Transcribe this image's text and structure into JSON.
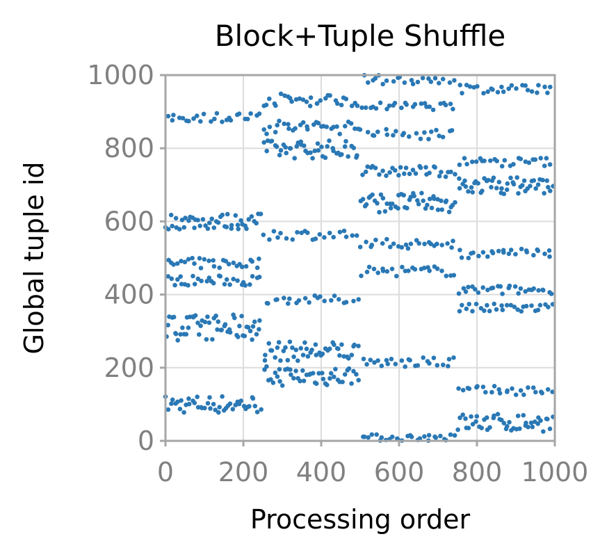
{
  "chart_data": {
    "type": "scatter",
    "title": "Block+Tuple Shuffle",
    "xlabel": "Processing order",
    "ylabel": "Global tuple id",
    "xlim": [
      0,
      1000
    ],
    "ylim": [
      0,
      1000
    ],
    "xticks": [
      0,
      200,
      400,
      600,
      800,
      1000
    ],
    "yticks": [
      0,
      200,
      400,
      600,
      800,
      1000
    ],
    "grid": true,
    "legend": "none",
    "marker_color": "#2a78b5",
    "seed": 7,
    "segments": [
      {
        "x0": 0,
        "x1": 250,
        "groups": [
          {
            "y0": 75,
            "y1": 125,
            "n": 45
          },
          {
            "y0": 275,
            "y1": 345,
            "n": 55
          },
          {
            "y0": 425,
            "y1": 452,
            "n": 30
          },
          {
            "y0": 470,
            "y1": 500,
            "n": 28
          },
          {
            "y0": 578,
            "y1": 622,
            "n": 45
          },
          {
            "y0": 872,
            "y1": 898,
            "n": 25
          }
        ]
      },
      {
        "x0": 250,
        "x1": 500,
        "groups": [
          {
            "y0": 150,
            "y1": 205,
            "n": 45
          },
          {
            "y0": 218,
            "y1": 272,
            "n": 45
          },
          {
            "y0": 375,
            "y1": 397,
            "n": 22
          },
          {
            "y0": 550,
            "y1": 578,
            "n": 22
          },
          {
            "y0": 772,
            "y1": 822,
            "n": 45
          },
          {
            "y0": 838,
            "y1": 878,
            "n": 30
          },
          {
            "y0": 915,
            "y1": 950,
            "n": 30
          }
        ]
      },
      {
        "x0": 500,
        "x1": 750,
        "groups": [
          {
            "y0": 0,
            "y1": 18,
            "n": 28
          },
          {
            "y0": 200,
            "y1": 228,
            "n": 25
          },
          {
            "y0": 450,
            "y1": 478,
            "n": 25
          },
          {
            "y0": 525,
            "y1": 552,
            "n": 25
          },
          {
            "y0": 625,
            "y1": 678,
            "n": 48
          },
          {
            "y0": 722,
            "y1": 752,
            "n": 32
          },
          {
            "y0": 825,
            "y1": 852,
            "n": 22
          },
          {
            "y0": 905,
            "y1": 925,
            "n": 25
          },
          {
            "y0": 975,
            "y1": 1000,
            "n": 22
          }
        ]
      },
      {
        "x0": 750,
        "x1": 1000,
        "groups": [
          {
            "y0": 25,
            "y1": 75,
            "n": 45
          },
          {
            "y0": 125,
            "y1": 150,
            "n": 25
          },
          {
            "y0": 350,
            "y1": 375,
            "n": 28
          },
          {
            "y0": 400,
            "y1": 425,
            "n": 28
          },
          {
            "y0": 500,
            "y1": 525,
            "n": 25
          },
          {
            "y0": 675,
            "y1": 722,
            "n": 48
          },
          {
            "y0": 750,
            "y1": 775,
            "n": 25
          },
          {
            "y0": 950,
            "y1": 975,
            "n": 25
          }
        ]
      }
    ]
  }
}
